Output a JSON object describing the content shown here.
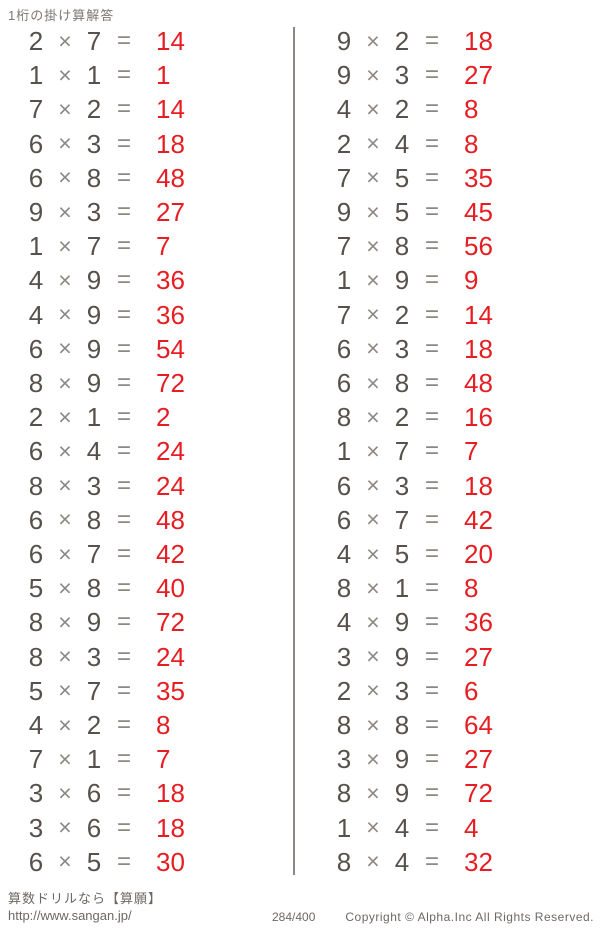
{
  "page": {
    "title": "1桁の掛け算解答"
  },
  "equation": {
    "times_symbol": "×",
    "equals_symbol": "="
  },
  "colors": {
    "problem": "#57514b",
    "operator": "#8d8782",
    "answer": "#e61e23",
    "divider": "#8d8782",
    "footer": "#6e6863",
    "title": "#7d7771"
  },
  "columns": [
    {
      "rows": [
        {
          "a": "2",
          "b": "7",
          "ans": "14"
        },
        {
          "a": "1",
          "b": "1",
          "ans": "1"
        },
        {
          "a": "7",
          "b": "2",
          "ans": "14"
        },
        {
          "a": "6",
          "b": "3",
          "ans": "18"
        },
        {
          "a": "6",
          "b": "8",
          "ans": "48"
        },
        {
          "a": "9",
          "b": "3",
          "ans": "27"
        },
        {
          "a": "1",
          "b": "7",
          "ans": "7"
        },
        {
          "a": "4",
          "b": "9",
          "ans": "36"
        },
        {
          "a": "4",
          "b": "9",
          "ans": "36"
        },
        {
          "a": "6",
          "b": "9",
          "ans": "54"
        },
        {
          "a": "8",
          "b": "9",
          "ans": "72"
        },
        {
          "a": "2",
          "b": "1",
          "ans": "2"
        },
        {
          "a": "6",
          "b": "4",
          "ans": "24"
        },
        {
          "a": "8",
          "b": "3",
          "ans": "24"
        },
        {
          "a": "6",
          "b": "8",
          "ans": "48"
        },
        {
          "a": "6",
          "b": "7",
          "ans": "42"
        },
        {
          "a": "5",
          "b": "8",
          "ans": "40"
        },
        {
          "a": "8",
          "b": "9",
          "ans": "72"
        },
        {
          "a": "8",
          "b": "3",
          "ans": "24"
        },
        {
          "a": "5",
          "b": "7",
          "ans": "35"
        },
        {
          "a": "4",
          "b": "2",
          "ans": "8"
        },
        {
          "a": "7",
          "b": "1",
          "ans": "7"
        },
        {
          "a": "3",
          "b": "6",
          "ans": "18"
        },
        {
          "a": "3",
          "b": "6",
          "ans": "18"
        },
        {
          "a": "6",
          "b": "5",
          "ans": "30"
        }
      ]
    },
    {
      "rows": [
        {
          "a": "9",
          "b": "2",
          "ans": "18"
        },
        {
          "a": "9",
          "b": "3",
          "ans": "27"
        },
        {
          "a": "4",
          "b": "2",
          "ans": "8"
        },
        {
          "a": "2",
          "b": "4",
          "ans": "8"
        },
        {
          "a": "7",
          "b": "5",
          "ans": "35"
        },
        {
          "a": "9",
          "b": "5",
          "ans": "45"
        },
        {
          "a": "7",
          "b": "8",
          "ans": "56"
        },
        {
          "a": "1",
          "b": "9",
          "ans": "9"
        },
        {
          "a": "7",
          "b": "2",
          "ans": "14"
        },
        {
          "a": "6",
          "b": "3",
          "ans": "18"
        },
        {
          "a": "6",
          "b": "8",
          "ans": "48"
        },
        {
          "a": "8",
          "b": "2",
          "ans": "16"
        },
        {
          "a": "1",
          "b": "7",
          "ans": "7"
        },
        {
          "a": "6",
          "b": "3",
          "ans": "18"
        },
        {
          "a": "6",
          "b": "7",
          "ans": "42"
        },
        {
          "a": "4",
          "b": "5",
          "ans": "20"
        },
        {
          "a": "8",
          "b": "1",
          "ans": "8"
        },
        {
          "a": "4",
          "b": "9",
          "ans": "36"
        },
        {
          "a": "3",
          "b": "9",
          "ans": "27"
        },
        {
          "a": "2",
          "b": "3",
          "ans": "6"
        },
        {
          "a": "8",
          "b": "8",
          "ans": "64"
        },
        {
          "a": "3",
          "b": "9",
          "ans": "27"
        },
        {
          "a": "8",
          "b": "9",
          "ans": "72"
        },
        {
          "a": "1",
          "b": "4",
          "ans": "4"
        },
        {
          "a": "8",
          "b": "4",
          "ans": "32"
        }
      ]
    }
  ],
  "footer": {
    "site_name": "算数ドリルなら【算願】",
    "site_url": "http://www.sangan.jp/",
    "page_number": "284/400",
    "copyright": "Copyright © Alpha.Inc All Rights Reserved."
  }
}
